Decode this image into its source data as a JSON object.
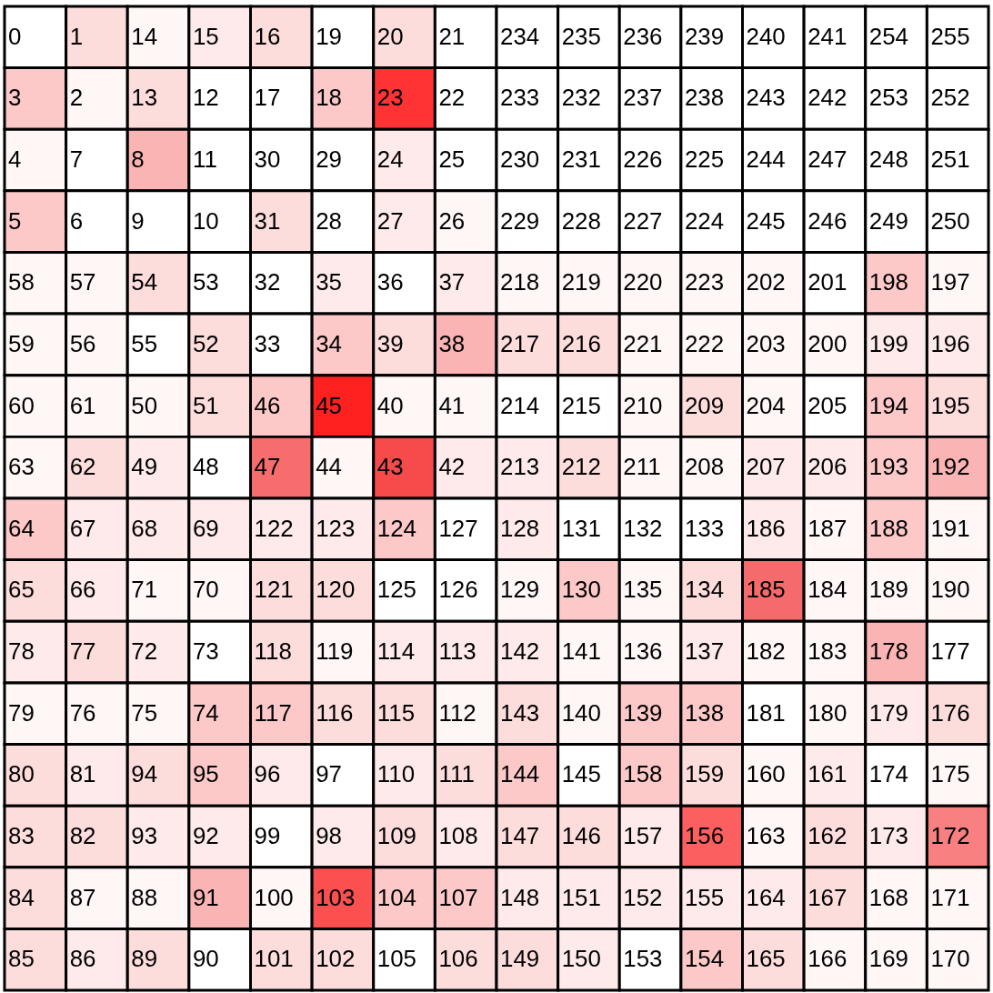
{
  "chart_data": {
    "type": "heatmap",
    "data_labels": true,
    "categories": [
      null,
      null,
      null,
      null,
      null,
      null,
      null,
      null,
      null,
      null,
      null,
      null,
      null,
      null,
      null,
      null
    ],
    "y_categories": [
      null,
      null,
      null,
      null,
      null,
      null,
      null,
      null,
      null,
      null,
      null,
      null,
      null,
      null,
      null,
      null
    ],
    "cells": [
      [
        0,
        1,
        14,
        15,
        16,
        19,
        20,
        21,
        234,
        235,
        236,
        239,
        240,
        241,
        254,
        255
      ],
      [
        3,
        2,
        13,
        12,
        17,
        18,
        23,
        22,
        233,
        232,
        237,
        238,
        243,
        242,
        253,
        252
      ],
      [
        4,
        7,
        8,
        11,
        30,
        29,
        24,
        25,
        230,
        231,
        226,
        225,
        244,
        247,
        248,
        251
      ],
      [
        5,
        6,
        9,
        10,
        31,
        28,
        27,
        26,
        229,
        228,
        227,
        224,
        245,
        246,
        249,
        250
      ],
      [
        58,
        57,
        54,
        53,
        32,
        35,
        36,
        37,
        218,
        219,
        220,
        223,
        202,
        201,
        198,
        197
      ],
      [
        59,
        56,
        55,
        52,
        33,
        34,
        39,
        38,
        217,
        216,
        221,
        222,
        203,
        200,
        199,
        196
      ],
      [
        60,
        61,
        50,
        51,
        46,
        45,
        40,
        41,
        214,
        215,
        210,
        209,
        204,
        205,
        194,
        195
      ],
      [
        63,
        62,
        49,
        48,
        47,
        44,
        43,
        42,
        213,
        212,
        211,
        208,
        207,
        206,
        193,
        192
      ],
      [
        64,
        67,
        68,
        69,
        122,
        123,
        124,
        127,
        128,
        131,
        132,
        133,
        186,
        187,
        188,
        191
      ],
      [
        65,
        66,
        71,
        70,
        121,
        120,
        125,
        126,
        129,
        130,
        135,
        134,
        185,
        184,
        189,
        190
      ],
      [
        78,
        77,
        72,
        73,
        118,
        119,
        114,
        113,
        142,
        141,
        136,
        137,
        182,
        183,
        178,
        177
      ],
      [
        79,
        76,
        75,
        74,
        117,
        116,
        115,
        112,
        143,
        140,
        139,
        138,
        181,
        180,
        179,
        176
      ],
      [
        80,
        81,
        94,
        95,
        96,
        97,
        110,
        111,
        144,
        145,
        158,
        159,
        160,
        161,
        174,
        175
      ],
      [
        83,
        82,
        93,
        92,
        99,
        98,
        109,
        108,
        147,
        146,
        157,
        156,
        163,
        162,
        173,
        172
      ],
      [
        84,
        87,
        88,
        91,
        100,
        103,
        104,
        107,
        148,
        151,
        152,
        155,
        164,
        167,
        168,
        171
      ],
      [
        85,
        86,
        89,
        90,
        101,
        102,
        105,
        106,
        149,
        150,
        153,
        154,
        165,
        166,
        169,
        170
      ]
    ],
    "colors": [
      [
        "#ffffff",
        "#fddcdc",
        "#fff6f6",
        "#feeaea",
        "#fddcdc",
        "#ffffff",
        "#fddcdc",
        "#ffffff",
        "#ffffff",
        "#ffffff",
        "#ffffff",
        "#ffffff",
        "#ffffff",
        "#ffffff",
        "#ffffff",
        "#ffffff"
      ],
      [
        "#fcc8c8",
        "#fff6f6",
        "#fddcdc",
        "#ffffff",
        "#ffffff",
        "#fcc8c8",
        "#ff3333",
        "#ffffff",
        "#ffffff",
        "#ffffff",
        "#ffffff",
        "#ffffff",
        "#ffffff",
        "#ffffff",
        "#ffffff",
        "#ffffff"
      ],
      [
        "#fff6f6",
        "#ffffff",
        "#fab4b4",
        "#ffffff",
        "#ffffff",
        "#ffffff",
        "#feeaea",
        "#ffffff",
        "#ffffff",
        "#ffffff",
        "#ffffff",
        "#ffffff",
        "#ffffff",
        "#ffffff",
        "#ffffff",
        "#ffffff"
      ],
      [
        "#fcc8c8",
        "#ffffff",
        "#ffffff",
        "#ffffff",
        "#fddcdc",
        "#ffffff",
        "#feeaea",
        "#fff6f6",
        "#ffffff",
        "#ffffff",
        "#ffffff",
        "#ffffff",
        "#ffffff",
        "#ffffff",
        "#ffffff",
        "#ffffff"
      ],
      [
        "#fff6f6",
        "#fff6f6",
        "#fddcdc",
        "#ffffff",
        "#ffffff",
        "#feeaea",
        "#ffffff",
        "#feeaea",
        "#fff6f6",
        "#fff6f6",
        "#fff6f6",
        "#fff6f6",
        "#fff6f6",
        "#ffffff",
        "#fcc8c8",
        "#fff6f6"
      ],
      [
        "#fff6f6",
        "#fff6f6",
        "#ffffff",
        "#fddcdc",
        "#ffffff",
        "#fcc8c8",
        "#fddcdc",
        "#fab4b4",
        "#fddcdc",
        "#fddcdc",
        "#fff6f6",
        "#fff6f6",
        "#fff6f6",
        "#fff6f6",
        "#feeaea",
        "#feeaea"
      ],
      [
        "#fff6f6",
        "#fff6f6",
        "#fff6f6",
        "#fddcdc",
        "#fcc8c8",
        "#ff2020",
        "#fff6f6",
        "#fff6f6",
        "#ffffff",
        "#ffffff",
        "#fff6f6",
        "#fddcdc",
        "#fff6f6",
        "#ffffff",
        "#fcc8c8",
        "#fddcdc"
      ],
      [
        "#fff6f6",
        "#fddcdc",
        "#feeaea",
        "#ffffff",
        "#f76d6d",
        "#fff6f6",
        "#f74a4a",
        "#feeaea",
        "#feeaea",
        "#fddcdc",
        "#fff6f6",
        "#fff6f6",
        "#feeaea",
        "#feeaea",
        "#fcc8c8",
        "#fab4b4"
      ],
      [
        "#fcc8c8",
        "#feeaea",
        "#feeaea",
        "#feeaea",
        "#feeaea",
        "#feeaea",
        "#fcc8c8",
        "#ffffff",
        "#feeaea",
        "#ffffff",
        "#ffffff",
        "#ffffff",
        "#feeaea",
        "#fff6f6",
        "#fcc8c8",
        "#fff6f6"
      ],
      [
        "#fddcdc",
        "#feeaea",
        "#fff6f6",
        "#fff6f6",
        "#fddcdc",
        "#fddcdc",
        "#ffffff",
        "#ffffff",
        "#fff6f6",
        "#fcc8c8",
        "#fff6f6",
        "#fddcdc",
        "#f56a6a",
        "#fff6f6",
        "#fff6f6",
        "#fff6f6"
      ],
      [
        "#feeaea",
        "#fddcdc",
        "#feeaea",
        "#ffffff",
        "#fddcdc",
        "#fff6f6",
        "#feeaea",
        "#feeaea",
        "#feeaea",
        "#fff6f6",
        "#fff6f6",
        "#feeaea",
        "#fff6f6",
        "#fff6f6",
        "#fab4b4",
        "#ffffff"
      ],
      [
        "#fff6f6",
        "#fff6f6",
        "#fff6f6",
        "#fcc8c8",
        "#fcc8c8",
        "#fddcdc",
        "#fddcdc",
        "#fff6f6",
        "#fddcdc",
        "#fff6f6",
        "#fcc8c8",
        "#fcc8c8",
        "#ffffff",
        "#fff6f6",
        "#feeaea",
        "#fddcdc"
      ],
      [
        "#fddcdc",
        "#feeaea",
        "#fddcdc",
        "#fcc8c8",
        "#feeaea",
        "#ffffff",
        "#feeaea",
        "#fddcdc",
        "#fcc8c8",
        "#ffffff",
        "#fcc8c8",
        "#fddcdc",
        "#fff6f6",
        "#feeaea",
        "#ffffff",
        "#fff6f6"
      ],
      [
        "#fddcdc",
        "#fddcdc",
        "#feeaea",
        "#feeaea",
        "#ffffff",
        "#feeaea",
        "#fddcdc",
        "#feeaea",
        "#fddcdc",
        "#fddcdc",
        "#feeaea",
        "#fb5f5f",
        "#fff6f6",
        "#fddcdc",
        "#feeaea",
        "#f98080"
      ],
      [
        "#fddcdc",
        "#fff6f6",
        "#fff6f6",
        "#fab4b4",
        "#fff6f6",
        "#fa5050",
        "#fcc8c8",
        "#fcc8c8",
        "#feeaea",
        "#feeaea",
        "#feeaea",
        "#feeaea",
        "#feeaea",
        "#fddcdc",
        "#fff6f6",
        "#fff6f6"
      ],
      [
        "#fddcdc",
        "#feeaea",
        "#fddcdc",
        "#ffffff",
        "#fddcdc",
        "#fddcdc",
        "#ffffff",
        "#fddcdc",
        "#fddcdc",
        "#feeaea",
        "#ffffff",
        "#fcc8c8",
        "#fddcdc",
        "#fff6f6",
        "#fff6f6",
        "#fff6f6"
      ]
    ]
  }
}
